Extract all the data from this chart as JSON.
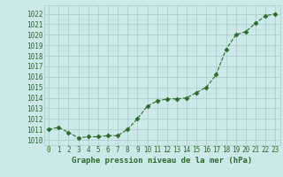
{
  "x": [
    0,
    1,
    2,
    3,
    4,
    5,
    6,
    7,
    8,
    9,
    10,
    11,
    12,
    13,
    14,
    15,
    16,
    17,
    18,
    19,
    20,
    21,
    22,
    23
  ],
  "y": [
    1011.0,
    1011.2,
    1010.7,
    1010.2,
    1010.3,
    1010.3,
    1010.4,
    1010.4,
    1011.0,
    1012.0,
    1013.2,
    1013.7,
    1013.9,
    1013.9,
    1014.0,
    1014.5,
    1015.0,
    1016.2,
    1018.6,
    1020.0,
    1020.3,
    1021.1,
    1021.8,
    1022.0
  ],
  "ylim": [
    1009.5,
    1022.8
  ],
  "xlim": [
    -0.5,
    23.5
  ],
  "yticks": [
    1010,
    1011,
    1012,
    1013,
    1014,
    1015,
    1016,
    1017,
    1018,
    1019,
    1020,
    1021,
    1022
  ],
  "xticks": [
    0,
    1,
    2,
    3,
    4,
    5,
    6,
    7,
    8,
    9,
    10,
    11,
    12,
    13,
    14,
    15,
    16,
    17,
    18,
    19,
    20,
    21,
    22,
    23
  ],
  "line_color": "#2d6a2d",
  "marker": "D",
  "marker_size": 2.5,
  "bg_color": "#cce8e8",
  "grid_color": "#aacccc",
  "xlabel": "Graphe pression niveau de la mer (hPa)",
  "xlabel_color": "#2d6a2d",
  "tick_color": "#2d6a2d",
  "label_fontsize": 6.5,
  "tick_fontsize": 5.5,
  "linewidth": 0.8
}
